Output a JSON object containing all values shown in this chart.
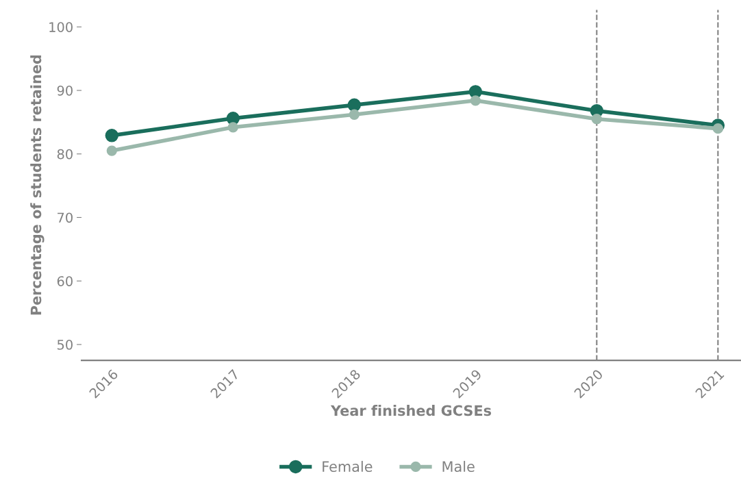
{
  "chart_data": {
    "type": "line",
    "xlabel": "Year finished GCSEs",
    "ylabel": "Percentage of students retained",
    "x": [
      2016,
      2017,
      2018,
      2019,
      2020,
      2021
    ],
    "series": [
      {
        "name": "Female",
        "color": "#1a6e5c",
        "values": [
          82.9,
          85.6,
          87.7,
          89.8,
          86.8,
          84.5
        ]
      },
      {
        "name": "Male",
        "color": "#9ab8ab",
        "values": [
          80.5,
          84.2,
          86.2,
          88.4,
          85.5,
          84.0
        ]
      }
    ],
    "xlim": [
      2015.75,
      2021.19
    ],
    "xticks": [
      2016,
      2017,
      2018,
      2019,
      2020,
      2021
    ],
    "ylim": [
      47.5,
      102.7
    ],
    "yticks": [
      50,
      60,
      70,
      80,
      90,
      100
    ],
    "ref_lines": [
      {
        "axis": "x",
        "value": 2020,
        "color": "#808080",
        "line_style": "dashed"
      },
      {
        "axis": "x",
        "value": 2021,
        "color": "#808080",
        "line_style": "dashed"
      }
    ],
    "grid": false,
    "legend": "bottom",
    "marker": "circle",
    "line_style": "solid"
  }
}
